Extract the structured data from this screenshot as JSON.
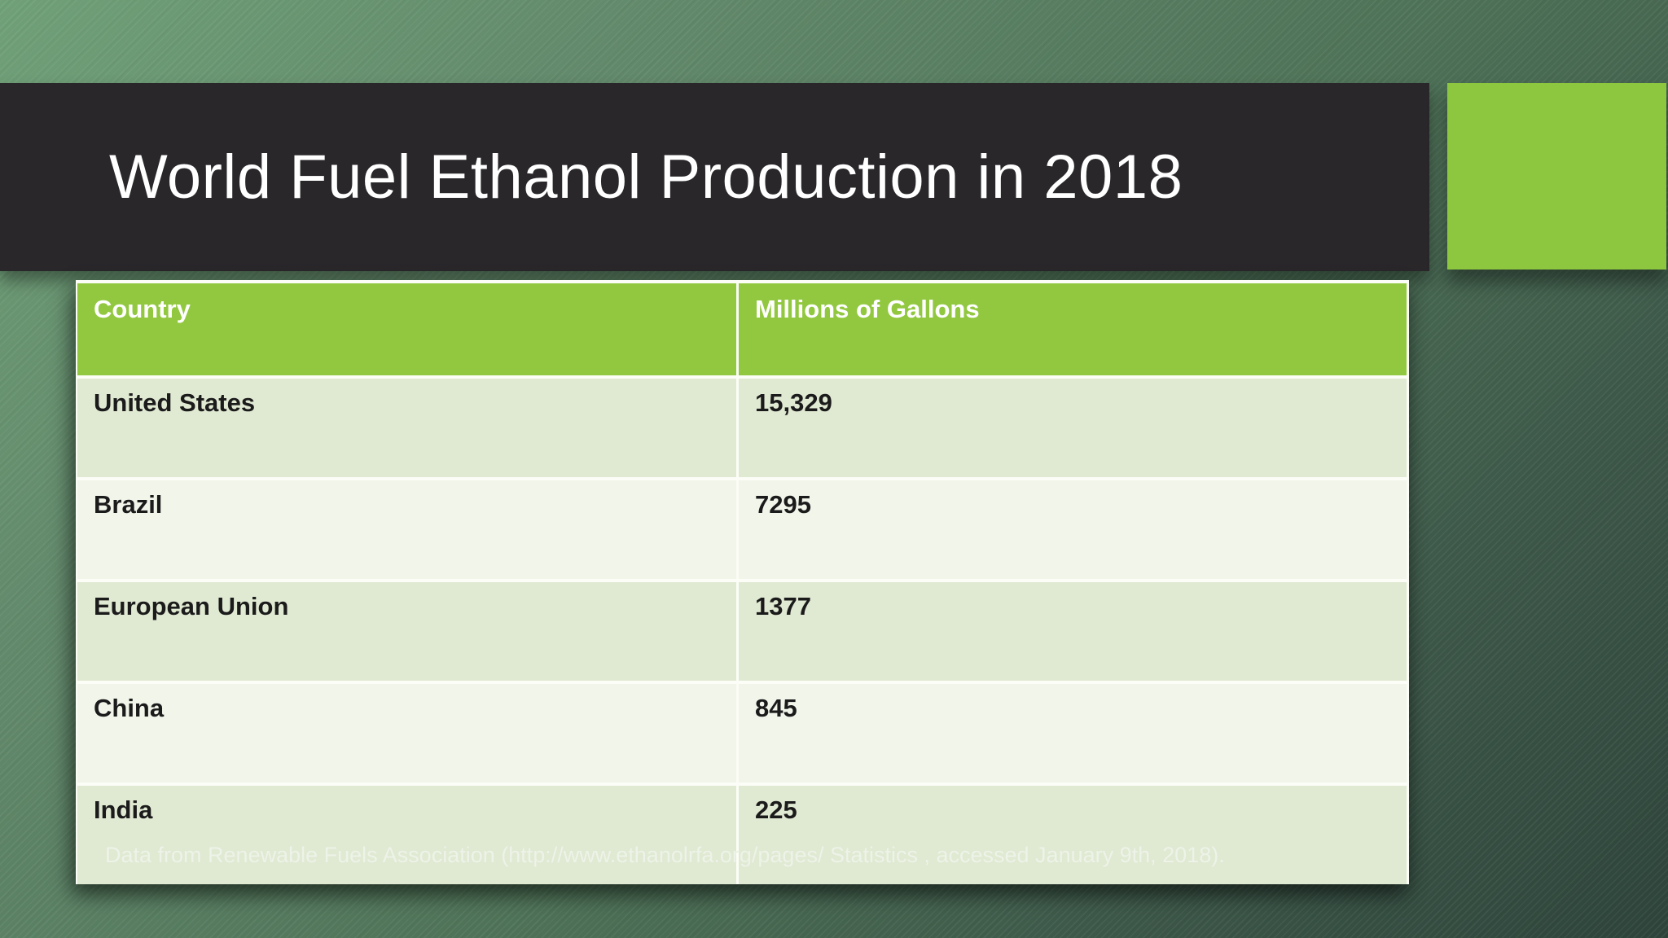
{
  "slide": {
    "title": "World Fuel Ethanol Production in 2018",
    "footer_citation": "Data from Renewable Fuels Association (http://www.ethanolrfa.org/pages/ Statistics , accessed January 9th, 2018)."
  },
  "table": {
    "columns": [
      "Country",
      "Millions of Gallons"
    ],
    "rows": [
      {
        "country": "United States",
        "value": "15,329"
      },
      {
        "country": "Brazil",
        "value": "7295"
      },
      {
        "country": "European Union",
        "value": "1377"
      },
      {
        "country": "China",
        "value": "845"
      },
      {
        "country": "India",
        "value": "225"
      }
    ]
  },
  "chart_data": {
    "type": "table",
    "title": "World Fuel Ethanol Production in 2018",
    "columns": [
      "Country",
      "Millions of Gallons"
    ],
    "rows": [
      [
        "United States",
        15329
      ],
      [
        "Brazil",
        7295
      ],
      [
        "European Union",
        1377
      ],
      [
        "China",
        845
      ],
      [
        "India",
        225
      ]
    ],
    "unit": "millions of gallons"
  },
  "colors": {
    "accent_green": "#8DC63F",
    "header_green": "#92C840",
    "title_bar_bg": "#29272A",
    "row_shaded": "#E0E9D2",
    "row_light": "#F1F5EA",
    "background_top_left": "#6FA077",
    "background_bottom_right": "#2E443B",
    "divider_white": "#FBFDF6"
  }
}
